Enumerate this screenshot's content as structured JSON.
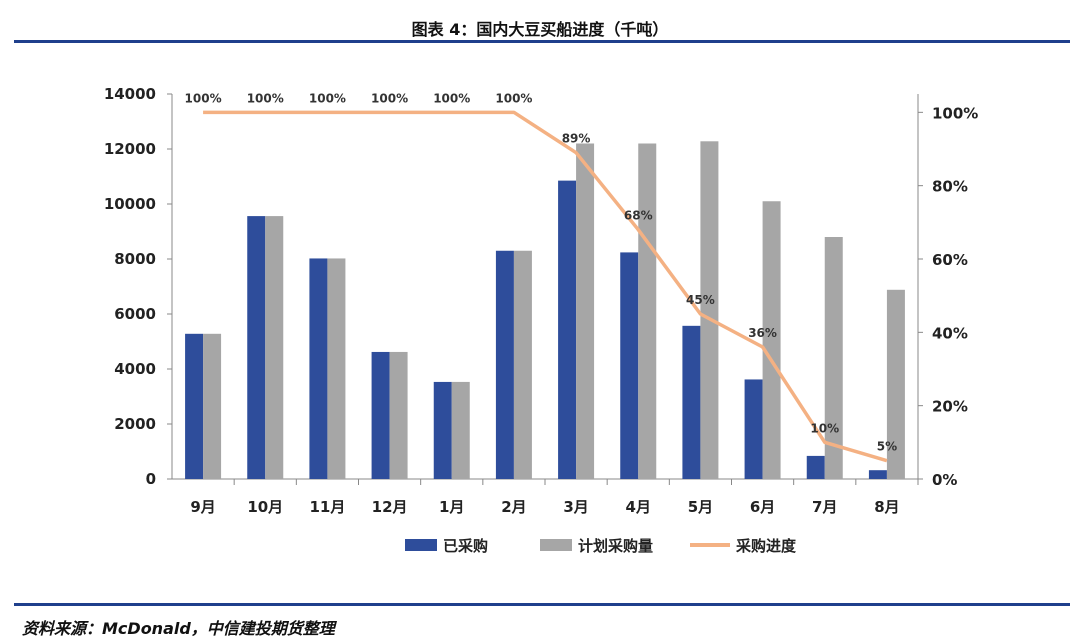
{
  "title": "图表 4：国内大豆买船进度（千吨）",
  "source": "资料来源：McDonald，中信建投期货整理",
  "colors": {
    "purchased": "#2e4d9b",
    "planned": "#a6a6a6",
    "progress": "#f4b183",
    "rule": "#1f3f8c"
  },
  "chart_data": {
    "type": "bar",
    "categories": [
      "9月",
      "10月",
      "11月",
      "12月",
      "1月",
      "2月",
      "3月",
      "4月",
      "5月",
      "6月",
      "7月",
      "8月"
    ],
    "series": [
      {
        "name": "已采购",
        "type": "bar",
        "axis": "left",
        "values": [
          5280,
          9560,
          8020,
          4620,
          3530,
          8300,
          10850,
          8240,
          5570,
          3620,
          840,
          320
        ]
      },
      {
        "name": "计划采购量",
        "type": "bar",
        "axis": "left",
        "values": [
          5280,
          9560,
          8020,
          4620,
          3530,
          8300,
          12200,
          12200,
          12280,
          10100,
          8800,
          6880
        ]
      },
      {
        "name": "采购进度",
        "type": "line",
        "axis": "right",
        "values": [
          100,
          100,
          100,
          100,
          100,
          100,
          89,
          68,
          45,
          36,
          10,
          5
        ],
        "labels": [
          "100%",
          "100%",
          "100%",
          "100%",
          "100%",
          "100%",
          "89%",
          "68%",
          "45%",
          "36%",
          "10%",
          "5%"
        ]
      }
    ],
    "left_axis": {
      "ylim": [
        0,
        14000
      ],
      "ticks": [
        "0",
        "2000",
        "4000",
        "6000",
        "8000",
        "10000",
        "12000",
        "14000"
      ]
    },
    "right_axis": {
      "ylim": [
        0,
        105
      ],
      "ticks": [
        "0%",
        "20%",
        "40%",
        "60%",
        "80%",
        "100%"
      ]
    },
    "legend_position": "bottom",
    "grid": false
  }
}
